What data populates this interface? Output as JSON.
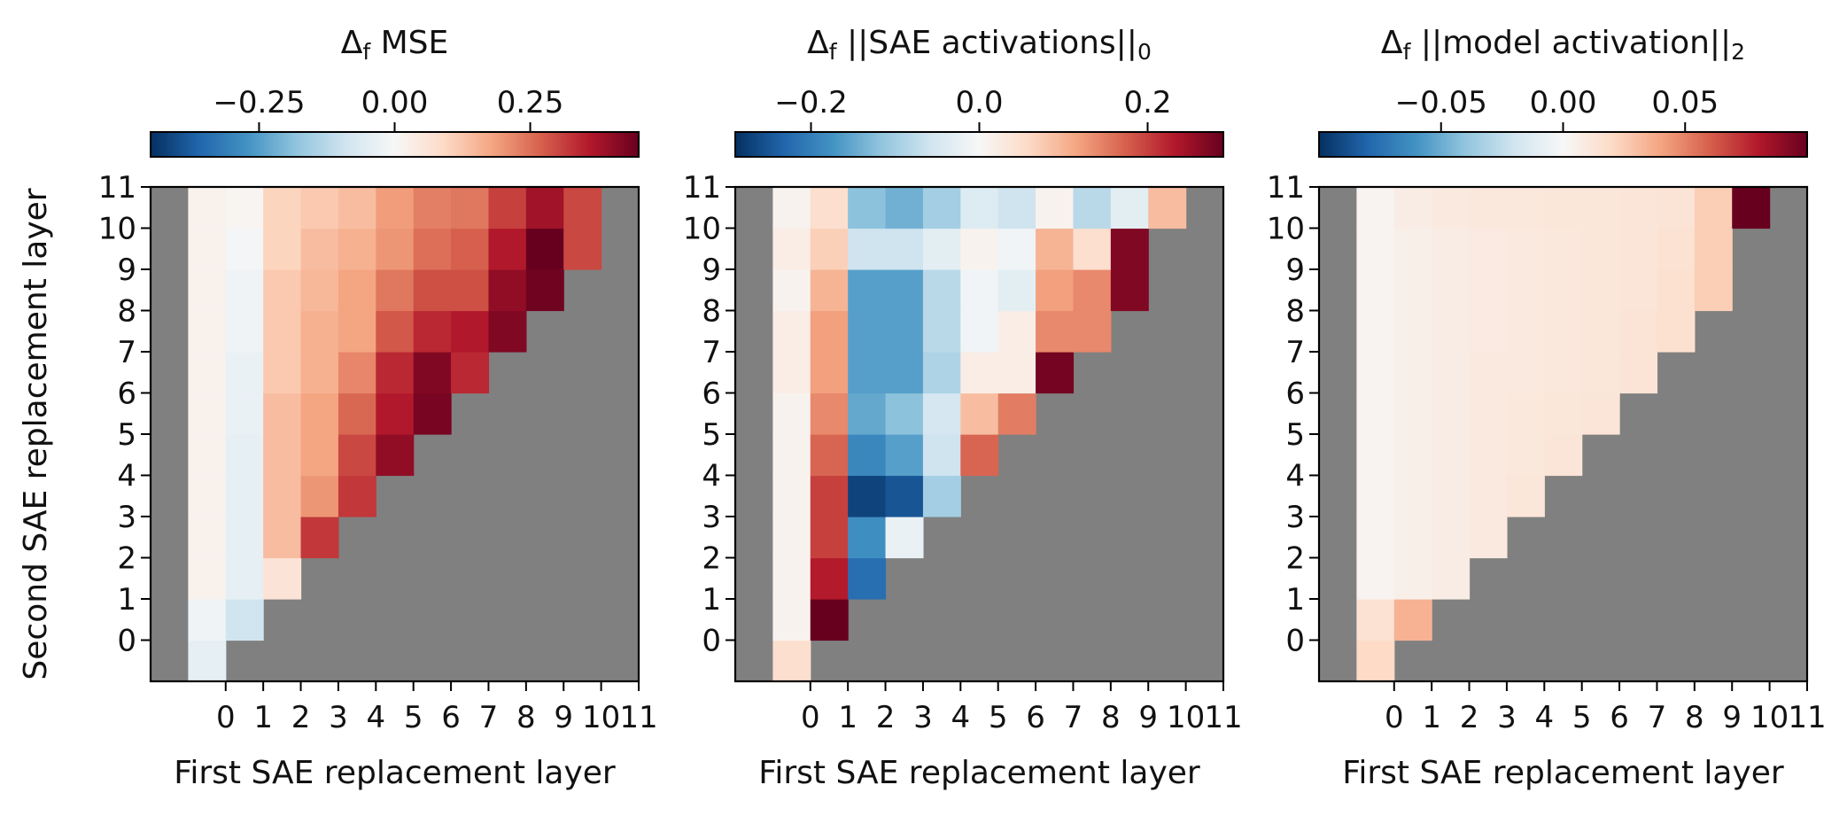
{
  "chart_data": [
    {
      "type": "heatmap",
      "title": "Δf MSE",
      "xlabel": "First SAE replacement layer",
      "ylabel": "Second SAE replacement layer",
      "x_ticks": [
        "0",
        "1",
        "2",
        "3",
        "4",
        "5",
        "6",
        "7",
        "8",
        "9",
        "10",
        "11"
      ],
      "y_ticks": [
        "0",
        "1",
        "2",
        "3",
        "4",
        "5",
        "6",
        "7",
        "8",
        "9",
        "10",
        "11"
      ],
      "colorbar": {
        "colormap": "RdBu_r",
        "range": [
          -0.45,
          0.45
        ],
        "ticks": [
          -0.25,
          0.0,
          0.25
        ],
        "tick_labels": [
          "−0.25",
          "0.00",
          "0.25"
        ],
        "location": "top"
      },
      "masked_color": "#808080",
      "x_cells": [
        -1,
        0,
        1,
        2,
        3,
        4,
        5,
        6,
        7,
        8,
        9,
        10
      ],
      "y_cells": [
        0,
        1,
        2,
        3,
        4,
        5,
        6,
        7,
        8,
        9,
        10,
        11
      ],
      "values": [
        [
          -0.04,
          null,
          null,
          null,
          null,
          null,
          null,
          null,
          null,
          null,
          null,
          null
        ],
        [
          -0.02,
          -0.09,
          null,
          null,
          null,
          null,
          null,
          null,
          null,
          null,
          null,
          null
        ],
        [
          0.02,
          -0.04,
          0.06,
          null,
          null,
          null,
          null,
          null,
          null,
          null,
          null,
          null
        ],
        [
          0.02,
          -0.04,
          0.14,
          0.32,
          null,
          null,
          null,
          null,
          null,
          null,
          null,
          null
        ],
        [
          0.02,
          -0.04,
          0.14,
          0.2,
          0.32,
          null,
          null,
          null,
          null,
          null,
          null,
          null
        ],
        [
          0.02,
          -0.04,
          0.14,
          0.18,
          0.3,
          0.4,
          null,
          null,
          null,
          null,
          null,
          null
        ],
        [
          0.02,
          -0.03,
          0.14,
          0.18,
          0.26,
          0.36,
          0.43,
          null,
          null,
          null,
          null,
          null
        ],
        [
          0.02,
          -0.03,
          0.12,
          0.16,
          0.22,
          0.34,
          0.42,
          0.34,
          null,
          null,
          null,
          null
        ],
        [
          0.02,
          -0.02,
          0.12,
          0.16,
          0.18,
          0.28,
          0.34,
          0.36,
          0.42,
          null,
          null,
          null
        ],
        [
          0.02,
          -0.02,
          0.12,
          0.15,
          0.18,
          0.24,
          0.29,
          0.29,
          0.4,
          0.44,
          null,
          null
        ],
        [
          0.02,
          -0.01,
          0.1,
          0.14,
          0.16,
          0.2,
          0.25,
          0.27,
          0.36,
          0.45,
          0.3,
          null
        ],
        [
          0.02,
          0.01,
          0.1,
          0.12,
          0.14,
          0.19,
          0.23,
          0.24,
          0.31,
          0.38,
          0.3,
          null
        ]
      ]
    },
    {
      "type": "heatmap",
      "title": "Δf ||SAE activations||0",
      "xlabel": "First SAE replacement layer",
      "ylabel": "",
      "x_ticks": [
        "0",
        "1",
        "2",
        "3",
        "4",
        "5",
        "6",
        "7",
        "8",
        "9",
        "10",
        "11"
      ],
      "y_ticks": [
        "0",
        "1",
        "2",
        "3",
        "4",
        "5",
        "6",
        "7",
        "8",
        "9",
        "10",
        "11"
      ],
      "colorbar": {
        "colormap": "RdBu_r",
        "range": [
          -0.29,
          0.29
        ],
        "ticks": [
          -0.2,
          0.0,
          0.2
        ],
        "tick_labels": [
          "−0.2",
          "0.0",
          "0.2"
        ],
        "location": "top"
      },
      "masked_color": "#808080",
      "x_cells": [
        -1,
        0,
        1,
        2,
        3,
        4,
        5,
        6,
        7,
        8,
        9,
        10
      ],
      "y_cells": [
        0,
        1,
        2,
        3,
        4,
        5,
        6,
        7,
        8,
        9,
        10,
        11
      ],
      "values": [
        [
          0.05,
          null,
          null,
          null,
          null,
          null,
          null,
          null,
          null,
          null,
          null,
          null
        ],
        [
          0.01,
          0.29,
          null,
          null,
          null,
          null,
          null,
          null,
          null,
          null,
          null,
          null
        ],
        [
          0.01,
          0.23,
          -0.22,
          null,
          null,
          null,
          null,
          null,
          null,
          null,
          null,
          null
        ],
        [
          0.01,
          0.2,
          -0.18,
          -0.02,
          null,
          null,
          null,
          null,
          null,
          null,
          null,
          null
        ],
        [
          0.01,
          0.2,
          -0.27,
          -0.25,
          -0.1,
          null,
          null,
          null,
          null,
          null,
          null,
          null
        ],
        [
          0.01,
          0.17,
          -0.19,
          -0.16,
          -0.06,
          0.17,
          null,
          null,
          null,
          null,
          null,
          null
        ],
        [
          0.01,
          0.14,
          -0.15,
          -0.12,
          -0.05,
          0.09,
          0.15,
          null,
          null,
          null,
          null,
          null
        ],
        [
          0.02,
          0.12,
          -0.16,
          -0.16,
          -0.09,
          0.02,
          0.02,
          0.28,
          null,
          null,
          null,
          null
        ],
        [
          0.02,
          0.12,
          -0.16,
          -0.16,
          -0.08,
          -0.01,
          0.02,
          0.14,
          0.14,
          null,
          null,
          null
        ],
        [
          0.01,
          0.1,
          -0.16,
          -0.16,
          -0.08,
          -0.01,
          -0.03,
          0.12,
          0.14,
          0.27,
          null,
          null
        ],
        [
          0.02,
          0.07,
          -0.06,
          -0.06,
          -0.03,
          0.01,
          -0.01,
          0.1,
          0.05,
          0.27,
          null,
          null
        ],
        [
          0.01,
          0.05,
          -0.12,
          -0.14,
          -0.1,
          -0.04,
          -0.06,
          0.01,
          -0.08,
          -0.03,
          0.09,
          null
        ]
      ]
    },
    {
      "type": "heatmap",
      "title": "Δf ||model activation||2",
      "xlabel": "First SAE replacement layer",
      "ylabel": "",
      "x_ticks": [
        "0",
        "1",
        "2",
        "3",
        "4",
        "5",
        "6",
        "7",
        "8",
        "9",
        "10",
        "11"
      ],
      "y_ticks": [
        "0",
        "1",
        "2",
        "3",
        "4",
        "5",
        "6",
        "7",
        "8",
        "9",
        "10",
        "11"
      ],
      "colorbar": {
        "colormap": "RdBu_r",
        "range": [
          -0.1,
          0.1
        ],
        "ticks": [
          -0.05,
          0.0,
          0.05
        ],
        "tick_labels": [
          "−0.05",
          "0.00",
          "0.05"
        ],
        "location": "top"
      },
      "masked_color": "#808080",
      "x_cells": [
        -1,
        0,
        1,
        2,
        3,
        4,
        5,
        6,
        7,
        8,
        9,
        10
      ],
      "y_cells": [
        0,
        1,
        2,
        3,
        4,
        5,
        6,
        7,
        8,
        9,
        10,
        11
      ],
      "values": [
        [
          0.02,
          null,
          null,
          null,
          null,
          null,
          null,
          null,
          null,
          null,
          null,
          null
        ],
        [
          0.015,
          0.035,
          null,
          null,
          null,
          null,
          null,
          null,
          null,
          null,
          null,
          null
        ],
        [
          0.003,
          0.006,
          0.008,
          null,
          null,
          null,
          null,
          null,
          null,
          null,
          null,
          null
        ],
        [
          0.003,
          0.006,
          0.008,
          0.01,
          null,
          null,
          null,
          null,
          null,
          null,
          null,
          null
        ],
        [
          0.003,
          0.006,
          0.008,
          0.01,
          0.012,
          null,
          null,
          null,
          null,
          null,
          null,
          null
        ],
        [
          0.003,
          0.006,
          0.008,
          0.01,
          0.011,
          0.013,
          null,
          null,
          null,
          null,
          null,
          null
        ],
        [
          0.003,
          0.006,
          0.008,
          0.01,
          0.011,
          0.012,
          0.013,
          null,
          null,
          null,
          null,
          null
        ],
        [
          0.003,
          0.006,
          0.008,
          0.01,
          0.01,
          0.011,
          0.012,
          0.014,
          null,
          null,
          null,
          null
        ],
        [
          0.003,
          0.006,
          0.008,
          0.009,
          0.01,
          0.011,
          0.012,
          0.014,
          0.016,
          null,
          null,
          null
        ],
        [
          0.003,
          0.006,
          0.008,
          0.009,
          0.01,
          0.011,
          0.012,
          0.013,
          0.016,
          0.025,
          null,
          null
        ],
        [
          0.003,
          0.006,
          0.008,
          0.009,
          0.01,
          0.011,
          0.012,
          0.013,
          0.015,
          0.025,
          null,
          null
        ],
        [
          0.003,
          0.008,
          0.01,
          0.011,
          0.011,
          0.012,
          0.012,
          0.013,
          0.014,
          0.025,
          0.1,
          null
        ]
      ]
    }
  ]
}
